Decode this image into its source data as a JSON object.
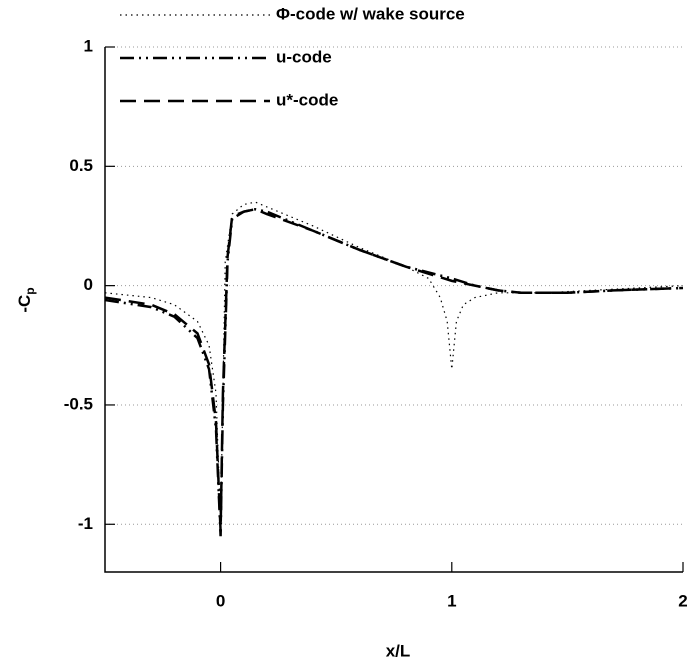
{
  "chart_data": {
    "type": "line",
    "x_label": "x/L",
    "y_label": "-C",
    "y_label_sub": "p",
    "xlim": [
      -0.5,
      2
    ],
    "ylim": [
      -1.2,
      1
    ],
    "xticks": [
      0,
      1,
      2
    ],
    "yticks": [
      1,
      0.5,
      0,
      -0.5,
      -1
    ],
    "grid": true,
    "series": [
      {
        "name": "Φ-code  w/  wake source",
        "color": "#000000",
        "style": "dotted",
        "x": [
          -0.5,
          -0.3,
          -0.2,
          -0.1,
          -0.05,
          -0.02,
          0,
          0.02,
          0.05,
          0.1,
          0.15,
          0.2,
          0.4,
          0.6,
          0.8,
          0.9,
          0.95,
          0.98,
          1.0,
          1.02,
          1.05,
          1.1,
          1.2,
          1.4,
          1.6,
          2.0
        ],
        "values": [
          -0.03,
          -0.05,
          -0.08,
          -0.15,
          -0.25,
          -0.45,
          -1.0,
          0.1,
          0.3,
          0.34,
          0.35,
          0.33,
          0.25,
          0.16,
          0.08,
          0.03,
          -0.05,
          -0.15,
          -0.35,
          -0.15,
          -0.08,
          -0.05,
          -0.03,
          -0.03,
          -0.02,
          0
        ]
      },
      {
        "name": "u-code",
        "color": "#000000",
        "style": "dashdot",
        "x": [
          -0.5,
          -0.3,
          -0.2,
          -0.1,
          -0.05,
          -0.02,
          0,
          0.01,
          0.03,
          0.05,
          0.1,
          0.15,
          0.2,
          0.4,
          0.6,
          0.8,
          1.0,
          1.1,
          1.2,
          1.3,
          1.5,
          1.7,
          2.0
        ],
        "values": [
          -0.06,
          -0.09,
          -0.13,
          -0.22,
          -0.35,
          -0.6,
          -1.05,
          -0.5,
          0.1,
          0.28,
          0.31,
          0.32,
          0.31,
          0.23,
          0.15,
          0.08,
          0.03,
          0.0,
          -0.02,
          -0.03,
          -0.03,
          -0.02,
          -0.01
        ]
      },
      {
        "name": "u*-code",
        "color": "#000000",
        "style": "dashed",
        "x": [
          -0.5,
          -0.3,
          -0.2,
          -0.1,
          -0.05,
          -0.02,
          0,
          0.01,
          0.03,
          0.05,
          0.1,
          0.15,
          0.2,
          0.4,
          0.6,
          0.8,
          1.0,
          1.1,
          1.2,
          1.3,
          1.5,
          1.7,
          2.0
        ],
        "values": [
          -0.05,
          -0.08,
          -0.12,
          -0.2,
          -0.33,
          -0.57,
          -1.03,
          -0.45,
          0.12,
          0.29,
          0.31,
          0.32,
          0.3,
          0.23,
          0.15,
          0.08,
          0.02,
          0.0,
          -0.02,
          -0.03,
          -0.03,
          -0.02,
          -0.01
        ]
      }
    ]
  }
}
